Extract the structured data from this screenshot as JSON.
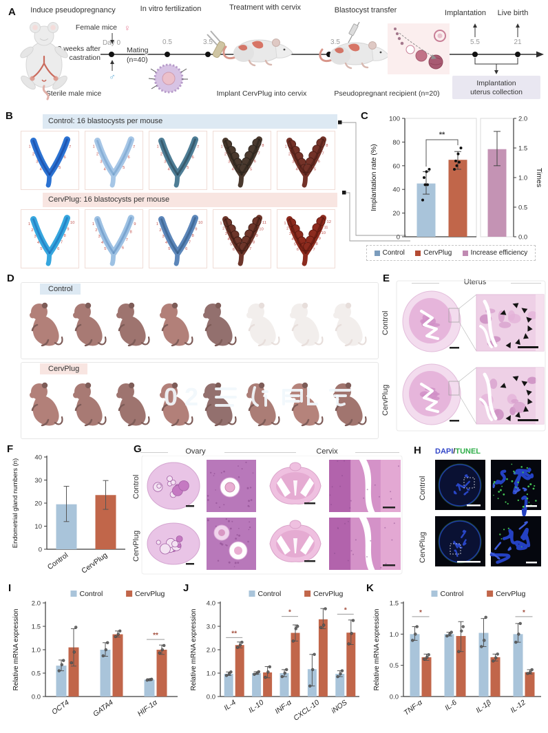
{
  "colors": {
    "control_blue": "#a9c4da",
    "cervplug_red": "#c1664a",
    "efficiency_mauve": "#c493b4",
    "legend_blue": "#7b9cbc",
    "legend_red": "#b44b33",
    "legend_mauve": "#c08ab2",
    "control_header_bg": "#dde9f3",
    "cervplug_header_bg": "#f8e5e1",
    "collection_box_bg": "#e9e7f1",
    "site_number": "#c0504d",
    "pup_pink": "#b28079",
    "pup_faded": "#f2eeec",
    "dapi_blue": "#3347c8",
    "tunel_green": "#2fae49"
  },
  "panelA": {
    "label": "A",
    "titles": {
      "induce": "Induce pseudopregnancy",
      "ivf": "In vitro fertilization",
      "treat": "Treatment with cervix",
      "transfer": "Blastocyst transfer",
      "implantation": "Implantation",
      "live_birth": "Live birth"
    },
    "female_mice": "Female mice",
    "female_symbol": "♀",
    "male_symbol": "♂",
    "day0": "Day 0",
    "mating1": "Mating",
    "mating2": "(n=40)",
    "castration1": "2 weeks after",
    "castration2": "castration",
    "sterile_male": "Sterile male mice",
    "t_05": "0.5",
    "t_35a": "3.5",
    "t_35b": "3.5",
    "t_55": "5.5",
    "t_21": "21",
    "implant_caption": "Implant CervPlug into cervix",
    "recipient_caption": "Pseudopregnant recipient (n=20)",
    "collection1": "Implantation",
    "collection2": "uterus collection"
  },
  "panelB": {
    "label": "B",
    "control_header": "Control: 16 blastocysts per mouse",
    "cervplug_header": "CervPlug: 16 blastocysts per mouse",
    "rows": [
      {
        "name": "control",
        "uteri": [
          {
            "sites": 7,
            "main": "#2b72d2",
            "dark": "#143f97",
            "beaded": false
          },
          {
            "sites": 7,
            "main": "#a6c6e6",
            "dark": "#6d9cc9",
            "beaded": false
          },
          {
            "sites": 7,
            "main": "#4e7d95",
            "dark": "#24404f",
            "beaded": false
          },
          {
            "sites": 8,
            "main": "#4a392e",
            "dark": "#272019",
            "beaded": true
          },
          {
            "sites": 8,
            "main": "#733228",
            "dark": "#471b14",
            "beaded": true
          }
        ]
      },
      {
        "name": "cervplug",
        "uteri": [
          {
            "sites": 10,
            "main": "#36a6de",
            "dark": "#1767b4",
            "beaded": false
          },
          {
            "sites": 9,
            "main": "#9dc1e3",
            "dark": "#5d8cbf",
            "beaded": false
          },
          {
            "sites": 10,
            "main": "#5c86b9",
            "dark": "#2e567f",
            "beaded": false
          },
          {
            "sites": 11,
            "main": "#6d352a",
            "dark": "#391811",
            "beaded": true
          },
          {
            "sites": 12,
            "main": "#8c2b1e",
            "dark": "#58150d",
            "beaded": true
          }
        ]
      }
    ]
  },
  "panelC": {
    "label": "C"
  },
  "panelD": {
    "label": "D",
    "control": "Control",
    "cervplug": "CervPlug",
    "pups_per_row": 8,
    "control_faded_after": 5,
    "watermark_text": "02"
  },
  "panelE": {
    "label": "E",
    "title": "Uterus",
    "rows": [
      "Control",
      "CervPlug"
    ]
  },
  "panelF": {
    "label": "F"
  },
  "panelG": {
    "label": "G",
    "col_titles": [
      "Ovary",
      "Cervix"
    ],
    "rows": [
      "Control",
      "CervPlug"
    ]
  },
  "panelH": {
    "label": "H",
    "stain1": "DAPI",
    "sep": "/",
    "stain2": "TUNEL",
    "rows": [
      "Control",
      "CervPlug"
    ]
  },
  "panelI": {
    "label": "I"
  },
  "panelJ": {
    "label": "J"
  },
  "panelK": {
    "label": "K"
  },
  "chart_data": [
    {
      "id": "C",
      "type": "bar",
      "left_axis": {
        "label": "Implantation rate (%)",
        "ylim": [
          0,
          100
        ],
        "yticks": [
          "0",
          "20",
          "40",
          "60",
          "80",
          "100"
        ]
      },
      "right_axis": {
        "label": "Times",
        "ylim": [
          0,
          2.0
        ],
        "yticks": [
          "0.0",
          "0.5",
          "1.0",
          "1.5",
          "2.0"
        ]
      },
      "bars": [
        {
          "name": "Control",
          "axis": "left",
          "value": 45,
          "err": [
            36,
            55
          ],
          "points": [
            31,
            44,
            44,
            50,
            55,
            57
          ]
        },
        {
          "name": "CervPlug",
          "axis": "left",
          "value": 65,
          "err": [
            57,
            72
          ],
          "points": [
            57,
            60,
            63,
            64,
            70,
            75
          ]
        },
        {
          "name": "Increase efficiency",
          "axis": "right",
          "value": 1.48,
          "err": [
            1.2,
            1.78
          ],
          "points": []
        }
      ],
      "significance": [
        {
          "between": [
            0,
            1
          ],
          "label": "**"
        }
      ],
      "legend": [
        "Control",
        "CervPlug",
        "Increase efficiency"
      ]
    },
    {
      "id": "F",
      "type": "bar",
      "ylabel": "Endometrial gland numbers (n)",
      "ylim": [
        0,
        40
      ],
      "yticks": [
        "0",
        "10",
        "20",
        "30",
        "40"
      ],
      "categories": [
        "Control",
        "CervPlug"
      ],
      "values": [
        19.5,
        23.5
      ],
      "errors": [
        [
          12,
          27.3
        ],
        [
          17.3,
          29.8
        ]
      ]
    },
    {
      "id": "I",
      "type": "grouped_bar",
      "ylabel": "Relative mRNA expression",
      "ylim": [
        0,
        2.0
      ],
      "yticks": [
        "0.0",
        "0.5",
        "1.0",
        "1.5",
        "2.0"
      ],
      "categories": [
        "OCT4",
        "GATA4",
        "HIF-1α"
      ],
      "series": [
        {
          "name": "Control",
          "values": [
            0.66,
            1.0,
            0.36
          ],
          "errors": [
            [
              0.55,
              0.78
            ],
            [
              0.86,
              1.15
            ],
            [
              0.34,
              0.38
            ]
          ],
          "points": [
            [
              0.55,
              0.68,
              0.77
            ],
            [
              0.87,
              1.0,
              1.15
            ],
            [
              0.35,
              0.36,
              0.37
            ]
          ]
        },
        {
          "name": "CervPlug",
          "values": [
            1.05,
            1.33,
            1.0
          ],
          "errors": [
            [
              0.65,
              1.45
            ],
            [
              1.27,
              1.4
            ],
            [
              0.9,
              1.1
            ]
          ],
          "points": [
            [
              0.72,
              0.95,
              1.48
            ],
            [
              1.28,
              1.33,
              1.4
            ],
            [
              0.93,
              1.0,
              1.09
            ]
          ]
        }
      ],
      "significance": [
        {
          "category": 2,
          "label": "**",
          "y": 1.22
        }
      ]
    },
    {
      "id": "J",
      "type": "grouped_bar",
      "ylabel": "Relative mRNA expression",
      "ylim": [
        0,
        4.0
      ],
      "yticks": [
        "0.0",
        "1.0",
        "2.0",
        "3.0",
        "4.0"
      ],
      "categories": [
        "IL-4",
        "IL-10",
        "INF-α",
        "CXCL-10",
        "iNOS"
      ],
      "series": [
        {
          "name": "Control",
          "values": [
            0.97,
            1.0,
            1.0,
            1.17,
            0.97
          ],
          "errors": [
            [
              0.9,
              1.05
            ],
            [
              0.95,
              1.06
            ],
            [
              0.85,
              1.15
            ],
            [
              0.45,
              1.8
            ],
            [
              0.85,
              1.1
            ]
          ],
          "points": [
            [
              0.9,
              0.97,
              1.05
            ],
            [
              0.95,
              1.0,
              1.06
            ],
            [
              0.85,
              1.0,
              1.15
            ],
            [
              0.45,
              1.15,
              1.8
            ],
            [
              0.85,
              0.97,
              1.1
            ]
          ]
        },
        {
          "name": "CervPlug",
          "values": [
            2.2,
            1.03,
            2.72,
            3.3,
            2.73
          ],
          "errors": [
            [
              2.08,
              2.33
            ],
            [
              0.8,
              1.28
            ],
            [
              2.37,
              3.06
            ],
            [
              2.9,
              3.76
            ],
            [
              2.22,
              3.27
            ]
          ],
          "points": [
            [
              2.1,
              2.2,
              2.32
            ],
            [
              0.82,
              1.05,
              1.27
            ],
            [
              2.37,
              2.9,
              3.0
            ],
            [
              2.95,
              3.05,
              3.75
            ],
            [
              2.25,
              2.7,
              3.25
            ]
          ]
        }
      ],
      "significance": [
        {
          "category": 0,
          "label": "**",
          "y": 2.52
        },
        {
          "category": 2,
          "label": "*",
          "y": 3.42
        },
        {
          "category": 4,
          "label": "*",
          "y": 3.52
        }
      ]
    },
    {
      "id": "K",
      "type": "grouped_bar",
      "ylabel": "Relative mRNA expression",
      "ylim": [
        0,
        1.5
      ],
      "yticks": [
        "0.0",
        "0.5",
        "1.0",
        "1.5"
      ],
      "categories": [
        "TNF-α",
        "IL-6",
        "IL-1β",
        "IL-12"
      ],
      "series": [
        {
          "name": "Control",
          "values": [
            1.0,
            1.0,
            1.02,
            1.0
          ],
          "errors": [
            [
              0.9,
              1.12
            ],
            [
              0.97,
              1.03
            ],
            [
              0.8,
              1.25
            ],
            [
              0.87,
              1.17
            ]
          ],
          "points": [
            [
              0.9,
              1.0,
              1.12
            ],
            [
              0.97,
              1.0,
              1.03
            ],
            [
              0.8,
              0.9,
              1.27
            ],
            [
              0.87,
              1.0,
              1.17
            ]
          ]
        },
        {
          "name": "CervPlug",
          "values": [
            0.63,
            0.97,
            0.63,
            0.39
          ],
          "errors": [
            [
              0.58,
              0.68
            ],
            [
              0.72,
              1.2
            ],
            [
              0.57,
              0.68
            ],
            [
              0.36,
              0.43
            ]
          ],
          "points": [
            [
              0.6,
              0.63,
              0.67
            ],
            [
              0.72,
              1.05,
              1.12
            ],
            [
              0.57,
              0.62,
              0.68
            ],
            [
              0.37,
              0.39,
              0.43
            ]
          ]
        }
      ],
      "significance": [
        {
          "category": 0,
          "label": "*",
          "y": 1.28
        },
        {
          "category": 3,
          "label": "*",
          "y": 1.28
        }
      ]
    }
  ]
}
